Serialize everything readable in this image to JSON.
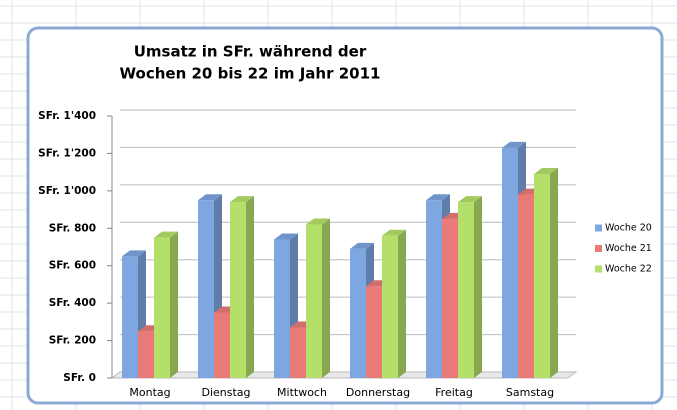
{
  "chart_data": {
    "type": "bar3d",
    "title": [
      "Umsatz in SFr. während der",
      "Wochen 20 bis 22 im Jahr 2011"
    ],
    "categories": [
      "Montag",
      "Dienstag",
      "Mittwoch",
      "Donnerstag",
      "Freitag",
      "Samstag"
    ],
    "series": [
      {
        "name": "Woche 20",
        "color": "#7ea6e0",
        "values": [
          650,
          950,
          740,
          690,
          950,
          1230
        ]
      },
      {
        "name": "Woche 21",
        "color": "#e97a77",
        "values": [
          250,
          350,
          270,
          490,
          850,
          980
        ]
      },
      {
        "name": "Woche 22",
        "color": "#b4e06a",
        "values": [
          750,
          940,
          820,
          760,
          940,
          1090
        ]
      }
    ],
    "ylim": [
      0,
      1400
    ],
    "yticks": [
      {
        "value": 0,
        "label": "SFr. 0"
      },
      {
        "value": 200,
        "label": "SFr. 200"
      },
      {
        "value": 400,
        "label": "SFr. 400"
      },
      {
        "value": 600,
        "label": "SFr. 600"
      },
      {
        "value": 800,
        "label": "SFr. 800"
      },
      {
        "value": 1000,
        "label": "SFr. 1'000"
      },
      {
        "value": 1200,
        "label": "SFr. 1'200"
      },
      {
        "value": 1400,
        "label": "SFr. 1'400"
      }
    ],
    "grid": true,
    "legend": "right"
  }
}
